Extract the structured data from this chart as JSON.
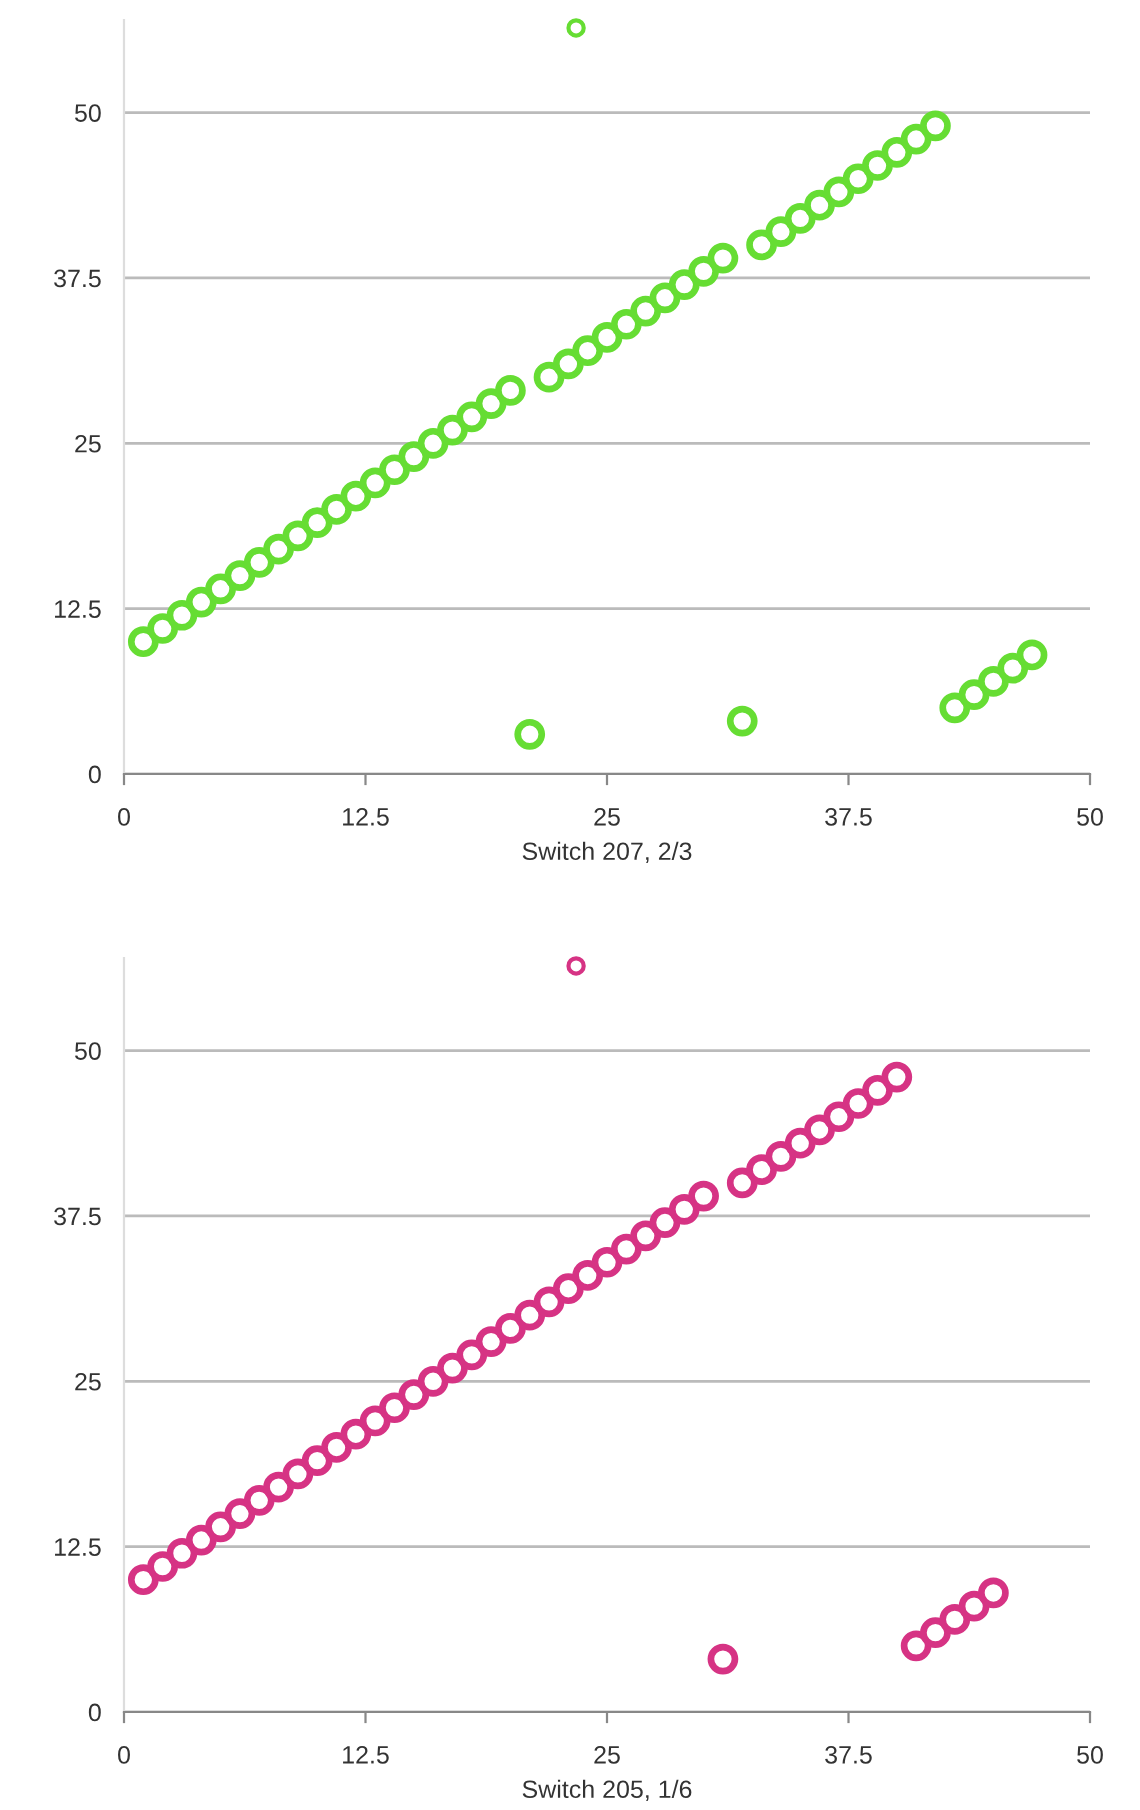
{
  "chart_data": [
    {
      "type": "scatter",
      "xlabel": "Switch 207, 2/3",
      "xlim": [
        0,
        50
      ],
      "ylim": [
        0,
        57
      ],
      "xticks": [
        0,
        12.5,
        25,
        37.5,
        50
      ],
      "yticks": [
        0,
        12.5,
        25,
        37.5,
        50
      ],
      "grid": "y",
      "marker": "circle",
      "legend": false,
      "series": [
        {
          "color": "#66dd33",
          "x": [
            1,
            2,
            3,
            4,
            5,
            6,
            7,
            8,
            9,
            10,
            11,
            12,
            13,
            14,
            15,
            16,
            17,
            18,
            19,
            20,
            21,
            22,
            23,
            24,
            25,
            26,
            27,
            28,
            29,
            30,
            31,
            32,
            33,
            34,
            35,
            36,
            37,
            38,
            39,
            40,
            41,
            42,
            43,
            44,
            45,
            46,
            47
          ],
          "values": [
            10,
            11,
            12,
            13,
            14,
            15,
            16,
            17,
            18,
            19,
            20,
            21,
            22,
            23,
            24,
            25,
            26,
            27,
            28,
            29,
            3,
            30,
            31,
            32,
            33,
            34,
            35,
            36,
            37,
            38,
            39,
            4,
            40,
            41,
            42,
            43,
            44,
            45,
            46,
            47,
            48,
            49,
            5,
            6,
            7,
            8,
            9
          ]
        },
        {
          "color": "#66dd33",
          "x": [
            23.4
          ],
          "values": [
            56.4
          ]
        }
      ]
    },
    {
      "type": "scatter",
      "xlabel": "Switch 205, 1/6",
      "xlim": [
        0,
        50
      ],
      "ylim": [
        0,
        57
      ],
      "xticks": [
        0,
        12.5,
        25,
        37.5,
        50
      ],
      "yticks": [
        0,
        12.5,
        25,
        37.5,
        50
      ],
      "grid": "y",
      "marker": "circle",
      "legend": false,
      "series": [
        {
          "color": "#d63384",
          "x": [
            1,
            2,
            3,
            4,
            5,
            6,
            7,
            8,
            9,
            10,
            11,
            12,
            13,
            14,
            15,
            16,
            17,
            18,
            19,
            20,
            21,
            22,
            23,
            24,
            25,
            26,
            27,
            28,
            29,
            30,
            31,
            32,
            33,
            34,
            35,
            36,
            37,
            38,
            39,
            40,
            41,
            42,
            43,
            44,
            45
          ],
          "values": [
            10,
            11,
            12,
            13,
            14,
            15,
            16,
            17,
            18,
            19,
            20,
            21,
            22,
            23,
            24,
            25,
            26,
            27,
            28,
            29,
            30,
            31,
            32,
            33,
            34,
            35,
            36,
            37,
            38,
            39,
            4,
            40,
            41,
            42,
            43,
            44,
            45,
            46,
            47,
            48,
            5,
            6,
            7,
            8,
            9
          ]
        },
        {
          "color": "#d63384",
          "x": [
            23.4
          ],
          "values": [
            56.4
          ]
        }
      ]
    }
  ]
}
